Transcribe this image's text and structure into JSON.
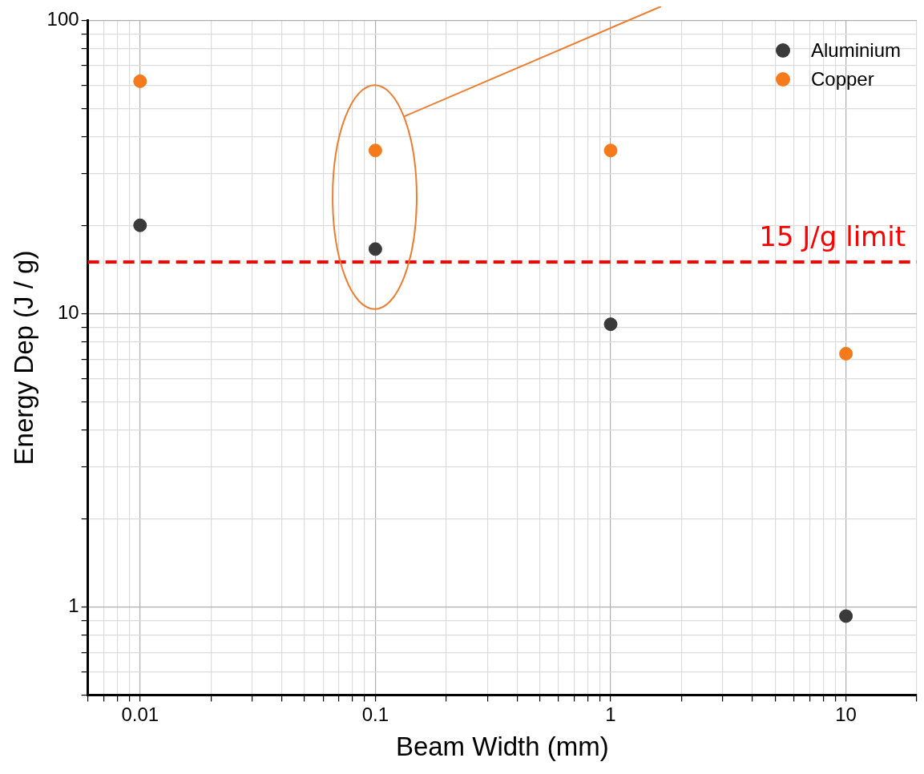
{
  "chart_data": {
    "type": "scatter",
    "xlabel": "Beam Width (mm)",
    "ylabel": "Energy Dep (J / g)",
    "log": "xy",
    "grid": true,
    "legend": "top right",
    "marker": "circle",
    "xlim": [
      0.006,
      20
    ],
    "xticks": [
      {
        "value": 0.006,
        "label": null
      },
      {
        "value": 0.007,
        "label": null
      },
      {
        "value": 0.008,
        "label": null
      },
      {
        "value": 0.009,
        "label": null
      },
      {
        "value": 0.01,
        "label": "0.01"
      },
      {
        "value": 0.02,
        "label": null
      },
      {
        "value": 0.03,
        "label": null
      },
      {
        "value": 0.04,
        "label": null
      },
      {
        "value": 0.05,
        "label": null
      },
      {
        "value": 0.06,
        "label": null
      },
      {
        "value": 0.07,
        "label": null
      },
      {
        "value": 0.08,
        "label": null
      },
      {
        "value": 0.09,
        "label": null
      },
      0.1,
      {
        "value": 0.2,
        "label": null
      },
      {
        "value": 0.3,
        "label": null
      },
      {
        "value": 0.4,
        "label": null
      },
      {
        "value": 0.5,
        "label": null
      },
      {
        "value": 0.6,
        "label": null
      },
      {
        "value": 0.7,
        "label": null
      },
      {
        "value": 0.8,
        "label": null
      },
      {
        "value": 0.9,
        "label": null
      },
      1,
      {
        "value": 2,
        "label": null
      },
      {
        "value": 3,
        "label": null
      },
      {
        "value": 4,
        "label": null
      },
      {
        "value": 5,
        "label": null
      },
      {
        "value": 6,
        "label": null
      },
      {
        "value": 7,
        "label": null
      },
      {
        "value": 8,
        "label": null
      },
      {
        "value": 9,
        "label": null
      },
      10,
      {
        "value": 20,
        "label": null
      }
    ],
    "ylim": [
      0.5,
      100
    ],
    "yticks": [
      {
        "value": 0.5,
        "label": null
      },
      {
        "value": 0.6,
        "label": null
      },
      {
        "value": 0.7,
        "label": null
      },
      {
        "value": 0.8,
        "label": null
      },
      {
        "value": 0.9,
        "label": null
      },
      1,
      {
        "value": 2,
        "label": null
      },
      {
        "value": 3,
        "label": null
      },
      {
        "value": 4,
        "label": null
      },
      {
        "value": 5,
        "label": null
      },
      {
        "value": 6,
        "label": null
      },
      {
        "value": 7,
        "label": null
      },
      {
        "value": 8,
        "label": null
      },
      {
        "value": 9,
        "label": null
      },
      10,
      {
        "value": 20,
        "label": null
      },
      {
        "value": 30,
        "label": null
      },
      {
        "value": 40,
        "label": null
      },
      {
        "value": 50,
        "label": null
      },
      {
        "value": 60,
        "label": null
      },
      {
        "value": 70,
        "label": null
      },
      {
        "value": 80,
        "label": null
      },
      {
        "value": 90,
        "label": null
      },
      100
    ],
    "x": [
      0.01,
      0.1,
      1,
      10
    ],
    "series": [
      {
        "name": "Aluminium",
        "color": "#3a3a3a",
        "values": [
          20,
          16.6,
          9.2,
          0.93
        ]
      },
      {
        "name": "Copper",
        "color": "#f57a1c",
        "values": [
          62,
          36,
          36,
          7.3
        ]
      }
    ],
    "ref_lines": [
      {
        "axis": "y",
        "value": 15,
        "label": "15 J/g limit",
        "color": "#ff0000",
        "line_style": "dashed"
      }
    ]
  }
}
